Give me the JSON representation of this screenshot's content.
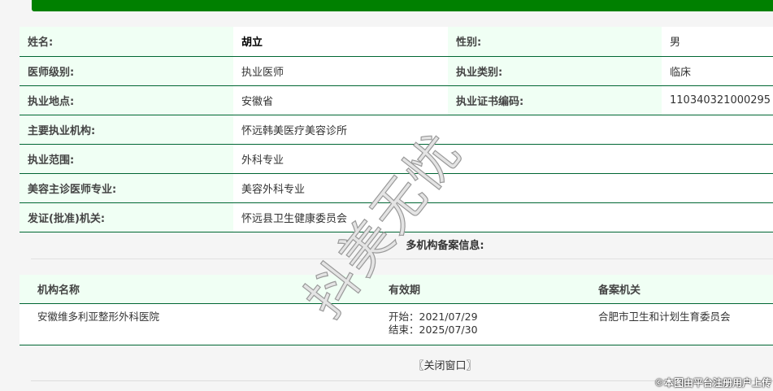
{
  "info": {
    "rows": [
      [
        {
          "label": "姓名:",
          "value": "胡立"
        },
        {
          "label": "性别:",
          "value": "男"
        }
      ],
      [
        {
          "label": "医师级别:",
          "value": "执业医师"
        },
        {
          "label": "执业类别:",
          "value": "临床"
        }
      ],
      [
        {
          "label": "执业地点:",
          "value": "安徽省"
        },
        {
          "label": "执业证书编码:",
          "value": "110340321000295"
        }
      ],
      [
        {
          "label": "主要执业机构:",
          "value": "怀远韩美医疗美容诊所"
        }
      ],
      [
        {
          "label": "执业范围:",
          "value": "外科专业"
        }
      ],
      [
        {
          "label": "美容主诊医师专业:",
          "value": "美容外科专业"
        }
      ],
      [
        {
          "label": "发证(批准)机关:",
          "value": "怀远县卫生健康委员会"
        }
      ]
    ]
  },
  "multi": {
    "title": "多机构备案信息:",
    "headers": [
      "机构名称",
      "有效期",
      "备案机关"
    ],
    "rows": [
      {
        "org": "安徽维多利亚整形外科医院",
        "start": "开始：2021/07/29",
        "end": "结束：2025/07/30",
        "authority": "合肥市卫生和计划生育委员会"
      }
    ]
  },
  "close_label": "〖关闭窗口〗",
  "watermark": "抖美无忧",
  "footer_watermark": "©本图由平台注册用户上传",
  "colors": {
    "banner": "#008000",
    "border": "#006633",
    "label_bg": "#f0fff4"
  }
}
